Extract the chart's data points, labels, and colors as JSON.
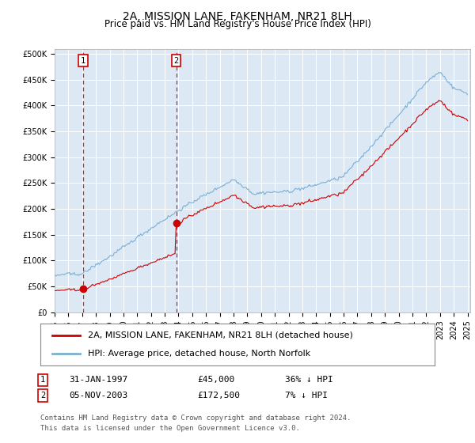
{
  "title": "2A, MISSION LANE, FAKENHAM, NR21 8LH",
  "subtitle": "Price paid vs. HM Land Registry's House Price Index (HPI)",
  "yticks": [
    0,
    50000,
    100000,
    150000,
    200000,
    250000,
    300000,
    350000,
    400000,
    450000,
    500000
  ],
  "ytick_labels": [
    "£0",
    "£50K",
    "£100K",
    "£150K",
    "£200K",
    "£250K",
    "£300K",
    "£350K",
    "£400K",
    "£450K",
    "£500K"
  ],
  "hpi_color": "#7bafd4",
  "sale_color": "#cc0000",
  "vline_color": "#cc0000",
  "plot_bg": "#dce9f5",
  "grid_color": "#ffffff",
  "sale1_year": 1997.08,
  "sale1_price": 45000,
  "sale2_year": 2003.83,
  "sale2_price": 172500,
  "sale1_date_str": "31-JAN-1997",
  "sale1_amount": "£45,000",
  "sale1_pct": "36% ↓ HPI",
  "sale2_date_str": "05-NOV-2003",
  "sale2_amount": "£172,500",
  "sale2_pct": "7% ↓ HPI",
  "legend_label1": "2A, MISSION LANE, FAKENHAM, NR21 8LH (detached house)",
  "legend_label2": "HPI: Average price, detached house, North Norfolk",
  "footer": "Contains HM Land Registry data © Crown copyright and database right 2024.\nThis data is licensed under the Open Government Licence v3.0.",
  "title_fontsize": 10,
  "subtitle_fontsize": 8.5,
  "tick_fontsize": 7,
  "legend_fontsize": 8,
  "footer_fontsize": 6.5,
  "xstart": 1995,
  "xend": 2025
}
